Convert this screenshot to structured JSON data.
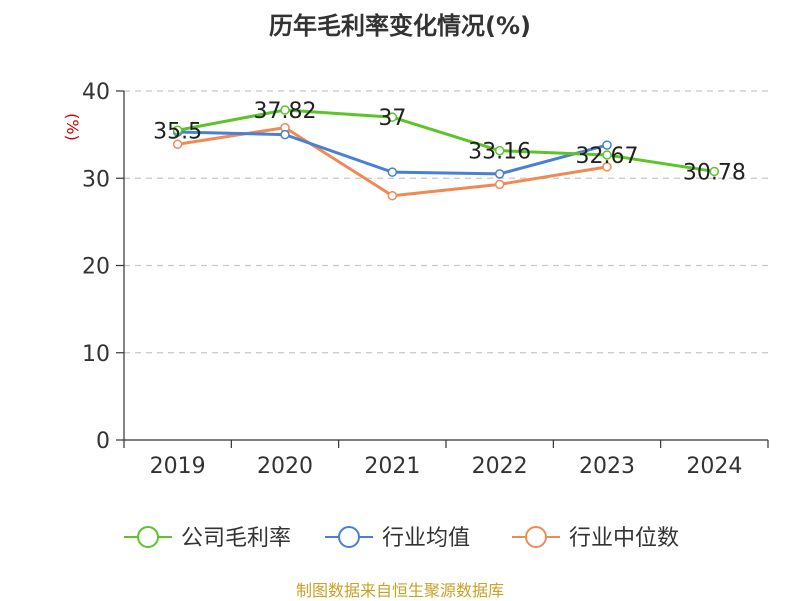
{
  "title": "历年毛利率变化情况(%)",
  "source": "制图数据来自恒生聚源数据库",
  "chart_data": {
    "type": "line",
    "categories": [
      "2019",
      "2020",
      "2021",
      "2022",
      "2023",
      "2024"
    ],
    "ylabel": "(%)",
    "ylim": [
      0,
      40
    ],
    "yticks": [
      0,
      10,
      20,
      30,
      40
    ],
    "grid": true,
    "legend_position": "bottom",
    "series": [
      {
        "name": "公司毛利率",
        "color": "#5cc42b",
        "values": [
          35.5,
          37.82,
          37,
          33.16,
          32.67,
          30.78
        ],
        "labels": [
          "35.5",
          "37.82",
          "37",
          "33.16",
          "32.67",
          "30.78"
        ]
      },
      {
        "name": "行业均值",
        "color": "#4a7fd6",
        "values": [
          35.3,
          35.0,
          30.7,
          30.5,
          33.8,
          null
        ]
      },
      {
        "name": "行业中位数",
        "color": "#f08a55",
        "values": [
          33.9,
          35.8,
          28.0,
          29.3,
          31.3,
          null
        ]
      }
    ]
  }
}
